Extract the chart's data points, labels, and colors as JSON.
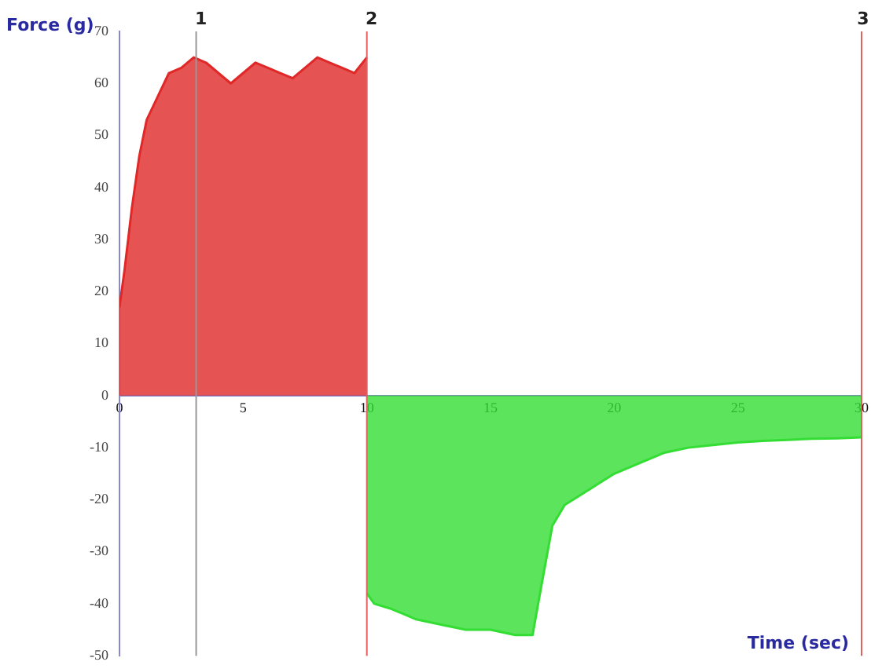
{
  "chart_data": {
    "type": "area",
    "xlabel": "Time (sec)",
    "ylabel": "Force (g)",
    "xlim": [
      0,
      30
    ],
    "xticks": [
      0,
      5,
      10,
      15,
      20,
      25,
      30
    ],
    "ylim": [
      -50,
      70
    ],
    "yticks": [
      -50,
      -40,
      -30,
      -20,
      -10,
      0,
      10,
      20,
      30,
      40,
      50,
      60,
      70
    ],
    "grid": false,
    "series": [
      {
        "color": "#e02828",
        "x": [
          0,
          0.2,
          0.5,
          0.8,
          1.1,
          1.5,
          2,
          2.5,
          3,
          3.5,
          4,
          4.5,
          5,
          5.5,
          6,
          6.5,
          7,
          7.5,
          8,
          8.5,
          9,
          9.5,
          10
        ],
        "values": [
          17,
          24,
          36,
          46,
          53,
          57,
          62,
          63,
          65,
          64,
          62,
          60,
          62,
          64,
          63,
          62,
          61,
          63,
          65,
          64,
          63,
          62,
          65
        ]
      },
      {
        "color": "#33dd33",
        "x": [
          10,
          10.3,
          11,
          12,
          13,
          14,
          15,
          16,
          16.7,
          17,
          17.5,
          18,
          19,
          20,
          21,
          22,
          23,
          24,
          25,
          26,
          27,
          28,
          29,
          30
        ],
        "values": [
          -38,
          -40,
          -41,
          -43,
          -44,
          -45,
          -45,
          -46,
          -46,
          -38,
          -25,
          -21,
          -18,
          -15,
          -13,
          -11,
          -10,
          -9.5,
          -9,
          -8.7,
          -8.5,
          -8.3,
          -8.2,
          -8
        ]
      }
    ],
    "ref_lines": [
      {
        "axis": "x",
        "value": 3.1,
        "color": "#999999"
      },
      {
        "axis": "x",
        "value": 10,
        "color": "#e06060"
      },
      {
        "axis": "x",
        "value": 30,
        "color": "#e06060"
      }
    ],
    "annotations": [
      {
        "text": "1",
        "x": 3.1,
        "y": 70
      },
      {
        "text": "2",
        "x": 10,
        "y": 70
      },
      {
        "text": "3",
        "x": 30,
        "y": 70
      }
    ]
  }
}
